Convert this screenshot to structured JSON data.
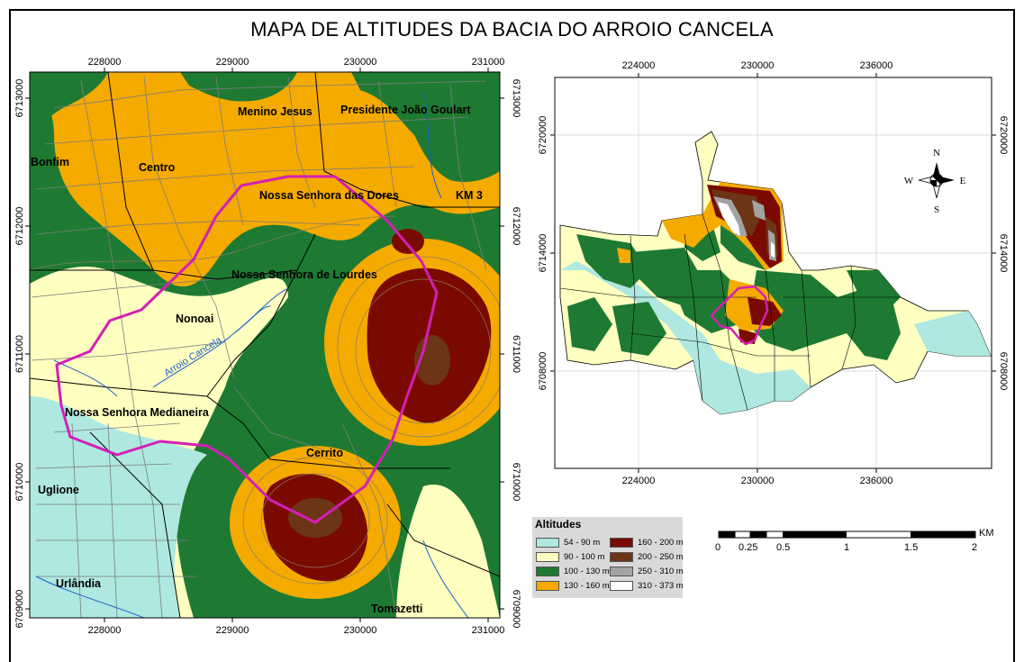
{
  "title": "MAPA DE ALTITUDES DA BACIA DO ARROIO CANCELA",
  "left_map": {
    "x_ticks": [
      "228000",
      "229000",
      "230000",
      "231000"
    ],
    "y_ticks": [
      "6713000",
      "6712000",
      "6711000",
      "6710000",
      "6709000"
    ],
    "places": {
      "menino_jesus": "Menino Jesus",
      "presidente_joao_goulart": "Presidente João Goulart",
      "bonfim": "Bonfim",
      "centro": "Centro",
      "nossa_senhora_das_dores": "Nossa Senhora das Dores",
      "km3": "KM 3",
      "nossa_senhora_de_lourdes": "Nossa Senhora de Lourdes",
      "nonoai": "Nonoai",
      "nossa_senhora_medianeira": "Nossa Senhora Medianeira",
      "cerrito": "Cerrito",
      "uglione": "Uglione",
      "urlandia": "Urlândia",
      "tomazetti": "Tomazetti"
    },
    "river_label": "Arroio Cancela"
  },
  "right_map": {
    "x_ticks": [
      "224000",
      "230000",
      "236000"
    ],
    "y_ticks": [
      "6720000",
      "6714000",
      "6708000"
    ],
    "compass": {
      "n": "N",
      "s": "S",
      "e": "E",
      "w": "W"
    }
  },
  "legend": {
    "title": "Altitudes",
    "items": [
      {
        "label": "54 - 90 m",
        "color": "#aee8e0"
      },
      {
        "label": "90 - 100 m",
        "color": "#ffffc0"
      },
      {
        "label": "100 - 130 m",
        "color": "#1e7a32"
      },
      {
        "label": "130 - 160 m",
        "color": "#f5aa00"
      },
      {
        "label": "160 - 200 m",
        "color": "#7a0a00"
      },
      {
        "label": "200 - 250 m",
        "color": "#6b3516"
      },
      {
        "label": "250 - 310 m",
        "color": "#a3a3a3"
      },
      {
        "label": "310 - 373 m",
        "color": "#ffffff"
      }
    ]
  },
  "scale_bar": {
    "labels": [
      "0",
      "0.25",
      "0.5",
      "1",
      "1.5",
      "2"
    ],
    "unit": "KM"
  },
  "colors": {
    "basin_outline": "#d41fb5",
    "streets": "#7d7d7d",
    "boundaries": "#000000",
    "rivers": "#1f5fd0"
  }
}
